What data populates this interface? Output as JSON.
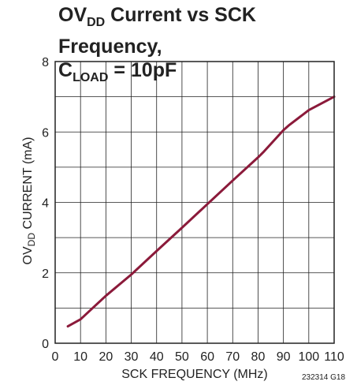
{
  "title": {
    "line1_prefix": "OV",
    "line1_sub": "DD",
    "line1_suffix": " Current vs SCK Frequency,",
    "line2_prefix": "C",
    "line2_sub": "LOAD",
    "line2_suffix": " = 10pF"
  },
  "footer_code": "232314 G18",
  "chart_data": {
    "type": "line",
    "xlabel": "SCK FREQUENCY (MHz)",
    "ylabel": {
      "prefix": "OV",
      "sub": "DD",
      "suffix": " CURRENT (mA)"
    },
    "xlim": [
      0,
      110
    ],
    "ylim": [
      0,
      8
    ],
    "xticks": [
      0,
      10,
      20,
      30,
      40,
      50,
      60,
      70,
      80,
      90,
      100,
      110
    ],
    "yticks": [
      0,
      2,
      4,
      6,
      8
    ],
    "grid": true,
    "line_color": "#8b1a3a",
    "series": [
      {
        "x": [
          5,
          10,
          20,
          30,
          40,
          50,
          60,
          70,
          80,
          82,
          90,
          92,
          100,
          110
        ],
        "y": [
          0.48,
          0.68,
          1.35,
          1.95,
          2.62,
          3.28,
          3.95,
          4.62,
          5.28,
          5.42,
          6.05,
          6.18,
          6.62,
          7.0
        ]
      }
    ]
  }
}
